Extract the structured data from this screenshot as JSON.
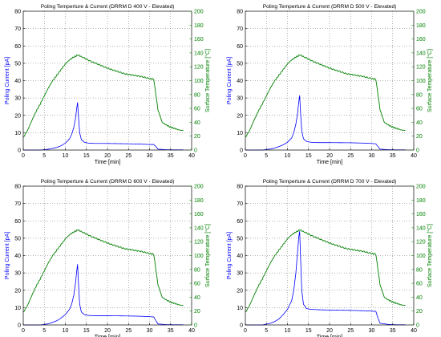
{
  "chart_data": [
    {
      "type": "line",
      "title": "Poling Temperture & Current (DRRM D 400 V - Elevated)",
      "xlabel": "Time [min]",
      "ylabel": "Poling Current [pA]",
      "ylabel_right": "Surface Temperature [°C]",
      "xlim": [
        0,
        40
      ],
      "ylim": [
        0,
        80
      ],
      "ylim_right": [
        0,
        200
      ],
      "xticks": [
        "0",
        "5",
        "10",
        "15",
        "20",
        "25",
        "30",
        "35",
        "40"
      ],
      "yticks": [
        "0",
        "10",
        "20",
        "30",
        "40",
        "50",
        "60",
        "70",
        "80"
      ],
      "yticks_right": [
        "0",
        "20",
        "40",
        "60",
        "80",
        "100",
        "120",
        "140",
        "160",
        "180",
        "200"
      ],
      "grid": true,
      "colors": {
        "current": "#0000ff",
        "temperature": "#008000"
      },
      "series": [
        {
          "axis": "left",
          "color": "#0000ff",
          "x": [
            0,
            2,
            4,
            5,
            6,
            7,
            8,
            9,
            10,
            11,
            11.5,
            12,
            12.4,
            12.7,
            12.9,
            13.1,
            13.4,
            13.8,
            14.5,
            15.5,
            17,
            20,
            25,
            28,
            30,
            31,
            31.5,
            32,
            34,
            36,
            38
          ],
          "y": [
            0,
            0,
            0,
            0.2,
            0.5,
            1,
            1.5,
            2.5,
            4,
            6.5,
            9,
            13,
            18,
            24,
            27.5,
            20,
            10,
            6,
            4.5,
            4,
            3.8,
            3.8,
            3.6,
            3.4,
            3.2,
            3.2,
            2,
            0.5,
            0.2,
            0.1,
            0.1
          ]
        },
        {
          "axis": "right",
          "color": "#008000",
          "x": [
            0,
            1,
            2,
            3,
            4,
            5,
            6,
            7,
            8,
            9,
            10,
            11,
            12,
            13,
            14,
            16,
            18,
            20,
            22,
            24,
            26,
            28,
            30,
            31,
            31.5,
            32,
            33,
            34,
            35,
            36,
            37,
            38
          ],
          "y": [
            18,
            28,
            42,
            55,
            66,
            78,
            90,
            100,
            108,
            116,
            124,
            130,
            134,
            137,
            134,
            128,
            123,
            118,
            114,
            110,
            108,
            106,
            103,
            102,
            80,
            58,
            40,
            36,
            33,
            31,
            29,
            28
          ]
        }
      ]
    },
    {
      "type": "line",
      "title": "Poling Temperture & Current (DRRM D 500 V - Elevated)",
      "xlabel": "Time [min]",
      "ylabel": "Poling Current [pA]",
      "ylabel_right": "Surface Temperature [°C]",
      "xlim": [
        0,
        40
      ],
      "ylim": [
        0,
        80
      ],
      "ylim_right": [
        0,
        200
      ],
      "xticks": [
        "0",
        "5",
        "10",
        "15",
        "20",
        "25",
        "30",
        "35",
        "40"
      ],
      "yticks": [
        "0",
        "10",
        "20",
        "30",
        "40",
        "50",
        "60",
        "70",
        "80"
      ],
      "yticks_right": [
        "0",
        "20",
        "40",
        "60",
        "80",
        "100",
        "120",
        "140",
        "160",
        "180",
        "200"
      ],
      "grid": true,
      "colors": {
        "current": "#0000ff",
        "temperature": "#008000"
      },
      "series": [
        {
          "axis": "left",
          "color": "#0000ff",
          "x": [
            0,
            2,
            4,
            5,
            6,
            7,
            8,
            9,
            10,
            11,
            11.5,
            12,
            12.4,
            12.7,
            12.9,
            13.1,
            13.4,
            13.8,
            14.5,
            15.5,
            17,
            20,
            25,
            28,
            30,
            31,
            31.5,
            32,
            34,
            36,
            38
          ],
          "y": [
            0,
            0,
            0,
            0.3,
            0.6,
            1.2,
            2,
            3,
            4.5,
            7,
            10,
            15,
            21,
            28,
            31.5,
            22,
            11,
            6.5,
            5,
            4.5,
            4.3,
            4.3,
            4.2,
            4,
            3.8,
            3.6,
            2,
            0.5,
            0.2,
            0.1,
            0.1
          ]
        },
        {
          "axis": "right",
          "color": "#008000",
          "x": [
            0,
            1,
            2,
            3,
            4,
            5,
            6,
            7,
            8,
            9,
            10,
            11,
            12,
            13,
            14,
            16,
            18,
            20,
            22,
            24,
            26,
            28,
            30,
            31,
            31.5,
            32,
            33,
            34,
            35,
            36,
            37,
            38
          ],
          "y": [
            18,
            28,
            42,
            55,
            66,
            78,
            90,
            100,
            108,
            116,
            124,
            130,
            134,
            137,
            134,
            128,
            123,
            118,
            114,
            110,
            108,
            106,
            103,
            102,
            80,
            58,
            40,
            36,
            33,
            31,
            29,
            28
          ]
        }
      ]
    },
    {
      "type": "line",
      "title": "Poling Temperture & Current (DRRM D 600 V - Elevated)",
      "xlabel": "Time [min]",
      "ylabel": "Poling Current [pA]",
      "ylabel_right": "Surface Temperature [°C]",
      "xlim": [
        0,
        40
      ],
      "ylim": [
        0,
        80
      ],
      "ylim_right": [
        0,
        200
      ],
      "xticks": [
        "0",
        "5",
        "10",
        "15",
        "20",
        "25",
        "30",
        "35",
        "40"
      ],
      "yticks": [
        "0",
        "10",
        "20",
        "30",
        "40",
        "50",
        "60",
        "70",
        "80"
      ],
      "yticks_right": [
        "0",
        "20",
        "40",
        "60",
        "80",
        "100",
        "120",
        "140",
        "160",
        "180",
        "200"
      ],
      "grid": true,
      "colors": {
        "current": "#0000ff",
        "temperature": "#008000"
      },
      "series": [
        {
          "axis": "left",
          "color": "#0000ff",
          "x": [
            0,
            2,
            4,
            5,
            6,
            7,
            8,
            9,
            10,
            11,
            11.5,
            12,
            12.4,
            12.7,
            12.9,
            13.1,
            13.4,
            13.8,
            14.5,
            15.5,
            17,
            20,
            25,
            28,
            30,
            31,
            31.5,
            32,
            34,
            36,
            38
          ],
          "y": [
            0,
            0,
            0,
            0.3,
            0.7,
            1.5,
            2.5,
            4,
            6,
            9,
            12,
            17,
            24,
            31,
            35,
            25,
            12,
            7.5,
            6,
            5.5,
            5.3,
            5.3,
            5.2,
            5,
            4.8,
            4.6,
            2.5,
            0.6,
            0.2,
            0.1,
            0.1
          ]
        },
        {
          "axis": "right",
          "color": "#008000",
          "x": [
            0,
            1,
            2,
            3,
            4,
            5,
            6,
            7,
            8,
            9,
            10,
            11,
            12,
            13,
            14,
            16,
            18,
            20,
            22,
            24,
            26,
            28,
            30,
            31,
            31.5,
            32,
            33,
            34,
            35,
            36,
            37,
            38
          ],
          "y": [
            18,
            28,
            42,
            55,
            66,
            78,
            90,
            100,
            108,
            116,
            124,
            130,
            134,
            137,
            134,
            128,
            123,
            118,
            114,
            110,
            108,
            106,
            103,
            102,
            80,
            58,
            40,
            36,
            33,
            31,
            29,
            28
          ]
        }
      ]
    },
    {
      "type": "line",
      "title": "Poling Temperture & Current (DRRM D 700 V - Elevated)",
      "xlabel": "Time [min]",
      "ylabel": "Poling Current [pA]",
      "ylabel_right": "Surface Temperature [°C]",
      "xlim": [
        0,
        40
      ],
      "ylim": [
        0,
        80
      ],
      "ylim_right": [
        0,
        200
      ],
      "xticks": [
        "0",
        "5",
        "10",
        "15",
        "20",
        "25",
        "30",
        "35",
        "40"
      ],
      "yticks": [
        "0",
        "10",
        "20",
        "30",
        "40",
        "50",
        "60",
        "70",
        "80"
      ],
      "yticks_right": [
        "0",
        "20",
        "40",
        "60",
        "80",
        "100",
        "120",
        "140",
        "160",
        "180",
        "200"
      ],
      "grid": true,
      "colors": {
        "current": "#0000ff",
        "temperature": "#008000"
      },
      "series": [
        {
          "axis": "left",
          "color": "#0000ff",
          "x": [
            0,
            2,
            4,
            5,
            6,
            7,
            8,
            9,
            10,
            11,
            11.5,
            12,
            12.4,
            12.7,
            12.9,
            13.1,
            13.4,
            13.8,
            14.5,
            15.5,
            17,
            20,
            25,
            28,
            30,
            31,
            31.5,
            32,
            34,
            36,
            38
          ],
          "y": [
            0,
            0,
            0,
            0.5,
            1,
            2,
            3.5,
            6,
            9,
            14,
            20,
            30,
            42,
            51,
            54,
            40,
            20,
            12,
            9.5,
            9,
            8.8,
            8.6,
            8.4,
            8.2,
            8,
            7.8,
            4,
            1,
            0.3,
            0.1,
            0.1
          ]
        },
        {
          "axis": "right",
          "color": "#008000",
          "x": [
            0,
            1,
            2,
            3,
            4,
            5,
            6,
            7,
            8,
            9,
            10,
            11,
            12,
            13,
            14,
            16,
            18,
            20,
            22,
            24,
            26,
            28,
            30,
            31,
            31.5,
            32,
            33,
            34,
            35,
            36,
            37,
            38
          ],
          "y": [
            18,
            28,
            42,
            55,
            66,
            78,
            90,
            100,
            108,
            116,
            124,
            130,
            134,
            137,
            134,
            128,
            123,
            118,
            114,
            110,
            108,
            106,
            103,
            102,
            80,
            58,
            40,
            36,
            33,
            31,
            29,
            28
          ]
        }
      ]
    }
  ]
}
